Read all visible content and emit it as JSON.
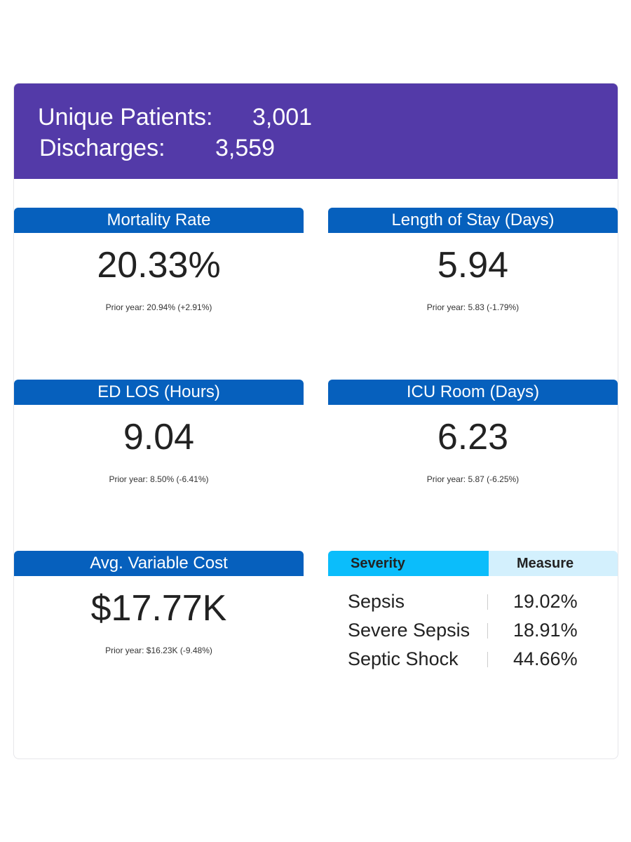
{
  "summary": {
    "unique_patients_label": "Unique Patients:",
    "unique_patients_value": "3,001",
    "discharges_label": "Discharges:",
    "discharges_value": "3,559"
  },
  "kpis": {
    "mortality": {
      "title": "Mortality Rate",
      "value": "20.33%",
      "prior": "Prior year: 20.94% (+2.91%)"
    },
    "los": {
      "title": "Length of Stay (Days)",
      "value": "5.94",
      "prior": "Prior year: 5.83 (-1.79%)"
    },
    "ed_los": {
      "title": "ED LOS (Hours)",
      "value": "9.04",
      "prior": "Prior year: 8.50% (-6.41%)"
    },
    "icu": {
      "title": "ICU Room (Days)",
      "value": "6.23",
      "prior": "Prior year: 5.87 (-6.25%)"
    },
    "cost": {
      "title": "Avg. Variable Cost",
      "value": "$17.77K",
      "prior": "Prior year: $16.23K (-9.48%)"
    }
  },
  "severity_table": {
    "headers": {
      "severity": "Severity",
      "measure": "Measure"
    },
    "rows": [
      {
        "severity": "Sepsis",
        "measure": "19.02%"
      },
      {
        "severity": "Severe Sepsis",
        "measure": "18.91%"
      },
      {
        "severity": "Septic Shock",
        "measure": "44.66%"
      }
    ]
  },
  "colors": {
    "banner": "#533aa8",
    "tile_header": "#0660bd",
    "severity_header": "#0bbdfb",
    "measure_header": "#d3f0fd"
  }
}
